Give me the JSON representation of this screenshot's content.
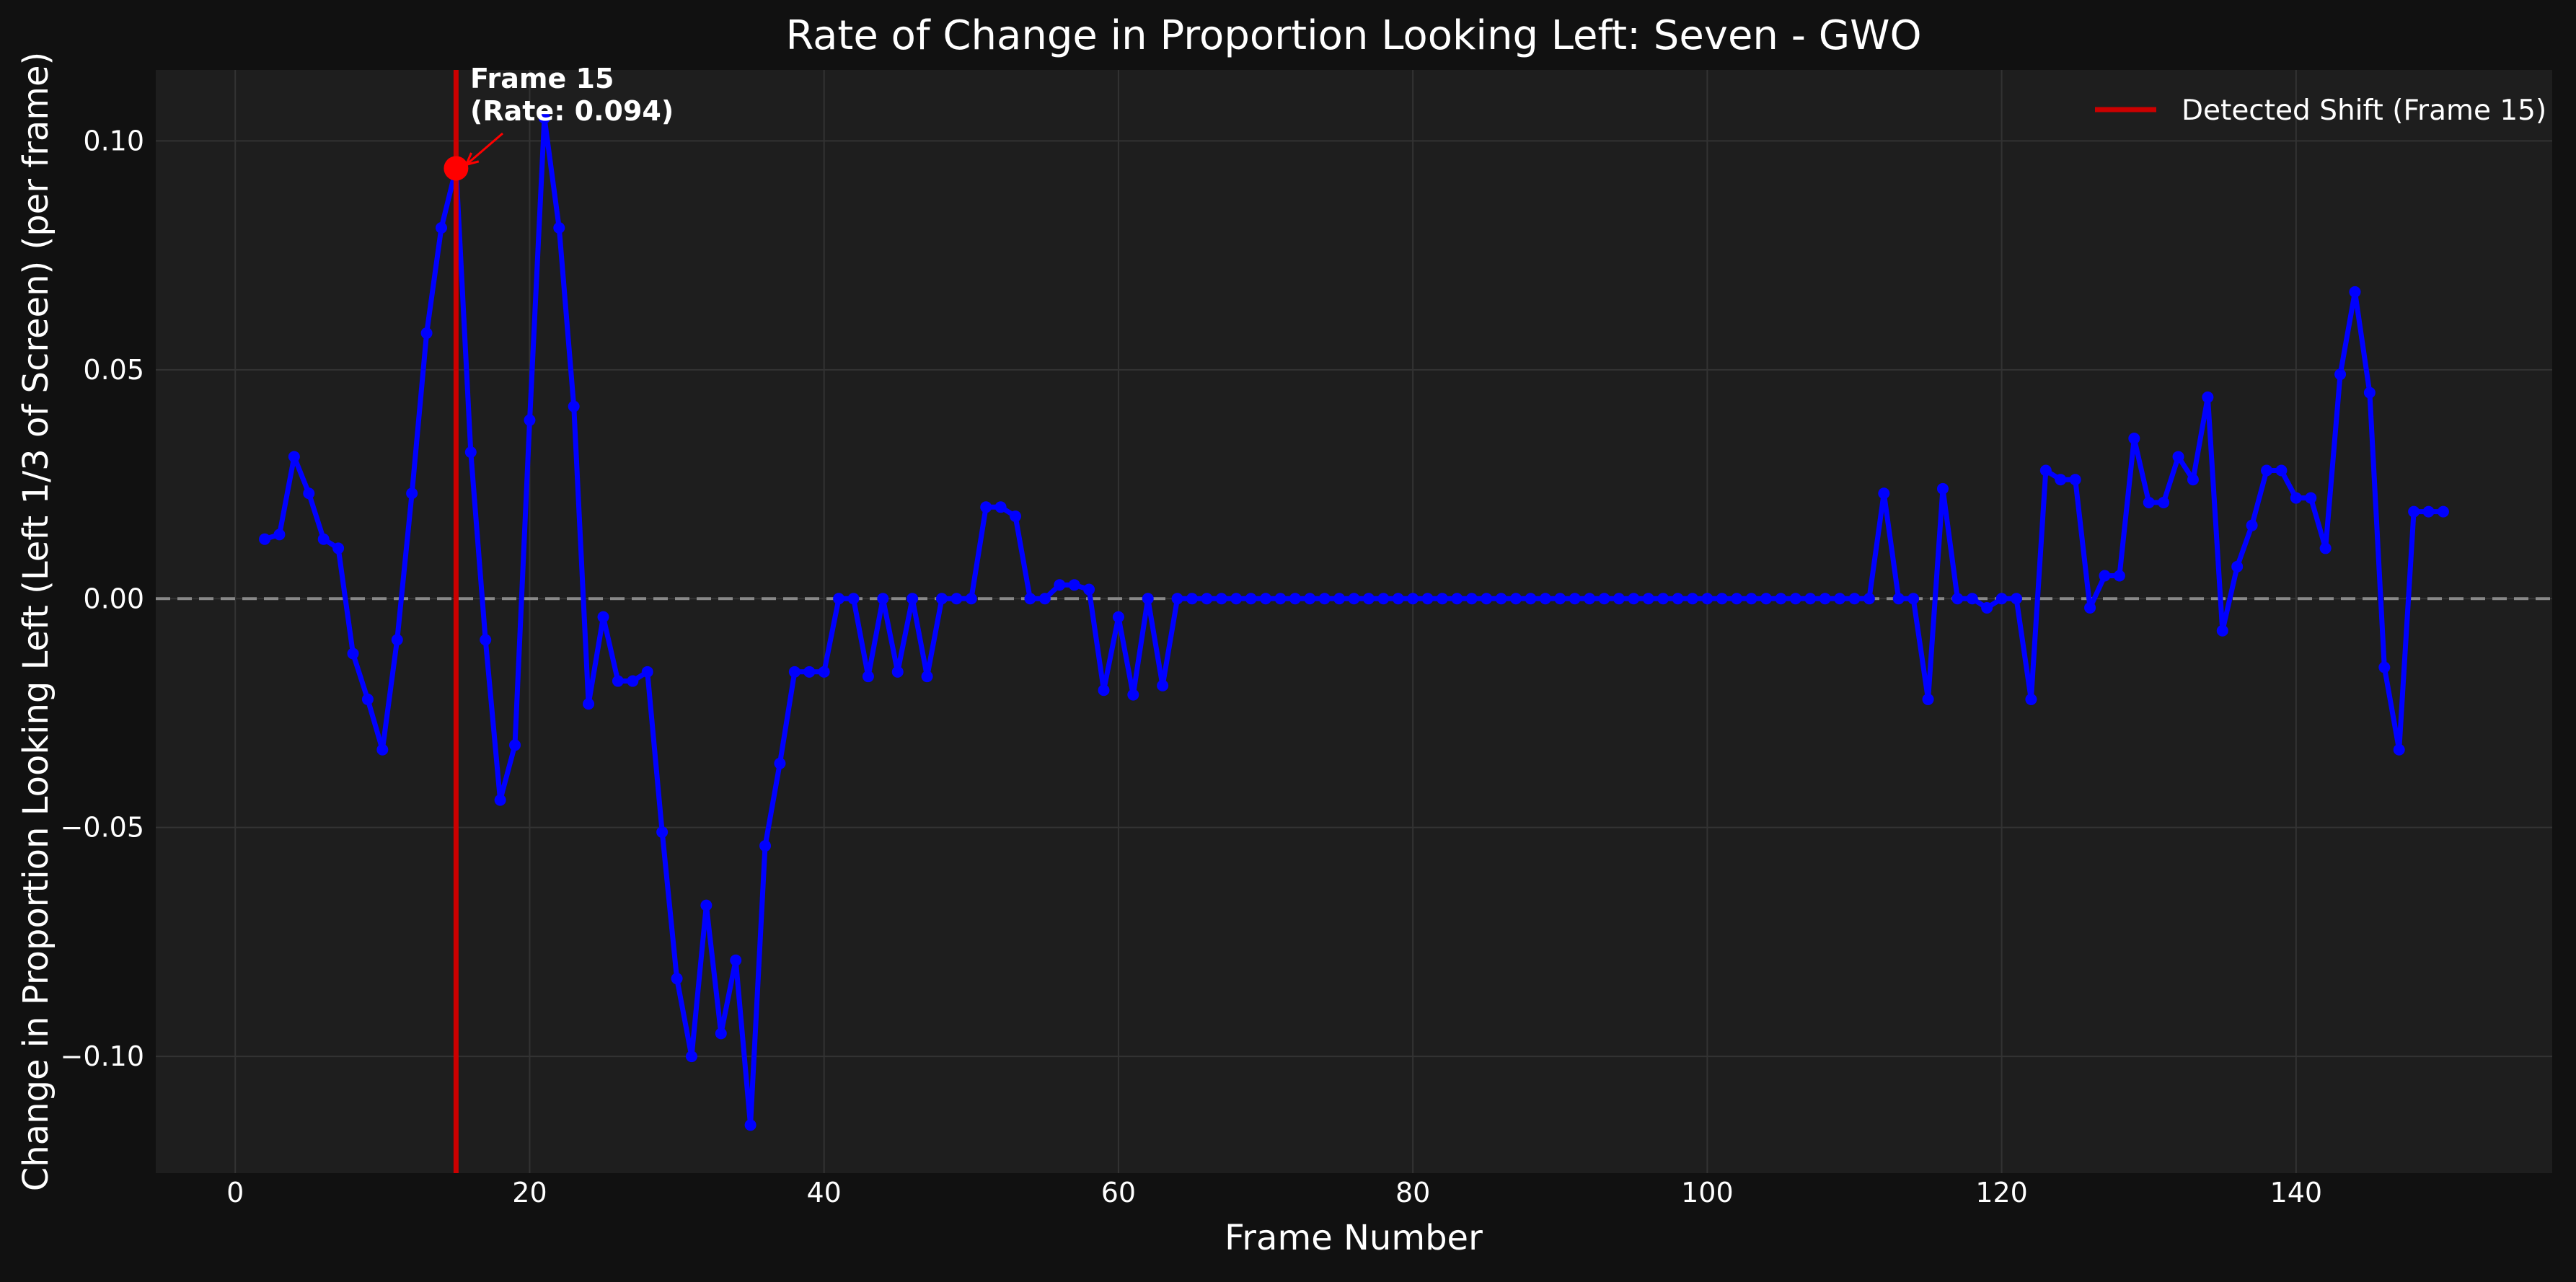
{
  "chart_data": {
    "type": "line",
    "title": "Rate of Change in Proportion Looking Left: Seven - GWO",
    "xlabel": "Frame Number",
    "ylabel": "Change in Proportion Looking Left (Left 1/3 of Screen) (per frame)",
    "xlim": [
      -5.4,
      157.4
    ],
    "ylim": [
      -0.1255,
      0.1155
    ],
    "xticks": [
      0,
      20,
      40,
      60,
      80,
      100,
      120,
      140
    ],
    "xtick_labels": [
      "0",
      "20",
      "40",
      "60",
      "80",
      "100",
      "120",
      "140"
    ],
    "yticks": [
      -0.1,
      -0.05,
      0.0,
      0.05,
      0.1
    ],
    "ytick_labels": [
      "−0.10",
      "−0.05",
      "0.00",
      "0.05",
      "0.10"
    ],
    "grid": true,
    "legend_position": "top-right",
    "series": [
      {
        "color": "#0000ff",
        "x": [
          2,
          3,
          4,
          5,
          6,
          7,
          8,
          9,
          10,
          11,
          12,
          13,
          14,
          15,
          16,
          17,
          18,
          19,
          20,
          21,
          22,
          23,
          24,
          25,
          26,
          27,
          28,
          29,
          30,
          31,
          32,
          33,
          34,
          35,
          36,
          37,
          38,
          39,
          40,
          41,
          42,
          43,
          44,
          45,
          46,
          47,
          48,
          49,
          50,
          51,
          52,
          53,
          54,
          55,
          56,
          57,
          58,
          59,
          60,
          61,
          62,
          63,
          64,
          65,
          66,
          67,
          68,
          69,
          70,
          71,
          72,
          73,
          74,
          75,
          76,
          77,
          78,
          79,
          80,
          81,
          82,
          83,
          84,
          85,
          86,
          87,
          88,
          89,
          90,
          91,
          92,
          93,
          94,
          95,
          96,
          97,
          98,
          99,
          100,
          101,
          102,
          103,
          104,
          105,
          106,
          107,
          108,
          109,
          110,
          111,
          112,
          113,
          114,
          115,
          116,
          117,
          118,
          119,
          120,
          121,
          122,
          123,
          124,
          125,
          126,
          127,
          128,
          129,
          130,
          131,
          132,
          133,
          134,
          135,
          136,
          137,
          138,
          139,
          140,
          141,
          142,
          143,
          144,
          145,
          146,
          147,
          148,
          149,
          150
        ],
        "y": [
          0.013,
          0.014,
          0.031,
          0.023,
          0.013,
          0.011,
          -0.012,
          -0.022,
          -0.033,
          -0.009,
          0.023,
          0.058,
          0.081,
          0.094,
          0.032,
          -0.009,
          -0.044,
          -0.032,
          0.039,
          0.105,
          0.081,
          0.042,
          -0.023,
          -0.004,
          -0.018,
          -0.018,
          -0.016,
          -0.051,
          -0.083,
          -0.1,
          -0.067,
          -0.095,
          -0.079,
          -0.115,
          -0.054,
          -0.036,
          -0.016,
          -0.016,
          -0.016,
          0.0,
          0.0,
          -0.017,
          0.0,
          -0.016,
          0.0,
          -0.017,
          0.0,
          0.0,
          0.0,
          0.02,
          0.02,
          0.018,
          0.0,
          0.0,
          0.003,
          0.003,
          0.002,
          -0.02,
          -0.004,
          -0.021,
          0.0,
          -0.019,
          0.0,
          0.0,
          0.0,
          0.0,
          0.0,
          0.0,
          0.0,
          0.0,
          0.0,
          0.0,
          0.0,
          0.0,
          0.0,
          0.0,
          0.0,
          0.0,
          0.0,
          0.0,
          0.0,
          0.0,
          0.0,
          0.0,
          0.0,
          0.0,
          0.0,
          0.0,
          0.0,
          0.0,
          0.0,
          0.0,
          0.0,
          0.0,
          0.0,
          0.0,
          0.0,
          0.0,
          0.0,
          0.0,
          0.0,
          0.0,
          0.0,
          0.0,
          0.0,
          0.0,
          0.0,
          0.0,
          0.0,
          0.0,
          0.023,
          0.0,
          0.0,
          -0.022,
          0.024,
          0.0,
          0.0,
          -0.002,
          0.0,
          0.0,
          -0.022,
          0.028,
          0.026,
          0.026,
          -0.002,
          0.005,
          0.005,
          0.035,
          0.021,
          0.021,
          0.031,
          0.026,
          0.044,
          -0.007,
          0.007,
          0.016,
          0.028,
          0.028,
          0.022,
          0.022,
          0.011,
          0.049,
          0.067,
          0.045,
          -0.015,
          -0.033,
          0.019,
          0.019,
          0.019
        ]
      }
    ],
    "shift_line": {
      "x": 15,
      "color": "#cc0000",
      "legend_label": "Detected Shift (Frame 15)"
    },
    "highlight_point": {
      "x": 15,
      "y": 0.094,
      "color": "#ff0000",
      "annotation_line1": "Frame 15",
      "annotation_line2": "(Rate: 0.094)"
    },
    "zero_line": {
      "y": 0.0,
      "color": "#888888"
    }
  },
  "colors": {
    "figure_background": "#111111",
    "axes_background": "#1e1e1e",
    "grid": "#333333",
    "text": "#ffffff"
  }
}
